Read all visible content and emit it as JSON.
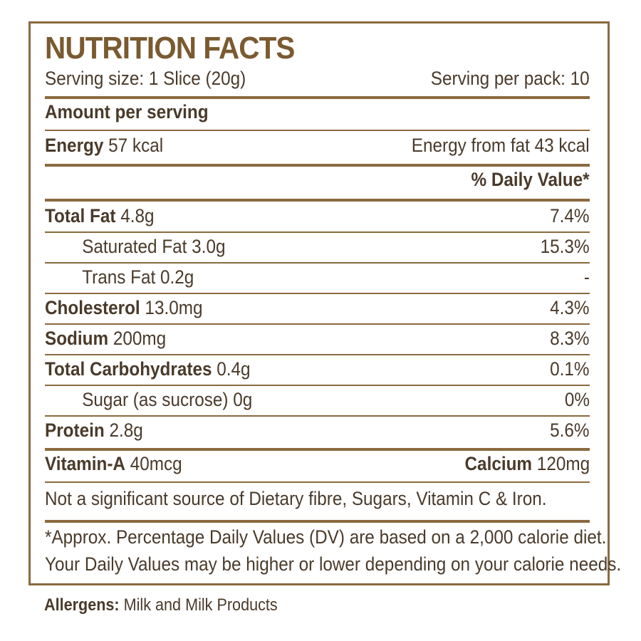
{
  "title": "NUTRITION FACTS",
  "serving": {
    "size": "Serving size: 1 Slice (20g)",
    "per_pack": "Serving per pack: 10"
  },
  "amount_header": "Amount per serving",
  "energy": {
    "label": "Energy",
    "value": " 57 kcal",
    "from_fat": "Energy from fat 43 kcal"
  },
  "dv_header": "% Daily Value*",
  "nutrients": [
    {
      "label": "Total Fat",
      "value": " 4.8g",
      "dv": "7.4%"
    },
    {
      "label": "Saturated Fat 3.0g",
      "value": "",
      "dv": "15.3%"
    },
    {
      "label": "Trans Fat 0.2g",
      "value": "",
      "dv": "-"
    },
    {
      "label": "Cholesterol",
      "value": " 13.0mg",
      "dv": "4.3%"
    },
    {
      "label": "Sodium",
      "value": " 200mg",
      "dv": "8.3%"
    },
    {
      "label": "Total Carbohydrates",
      "value": " 0.4g",
      "dv": "0.1%"
    },
    {
      "label": "Sugar (as sucrose) 0g",
      "value": "",
      "dv": "0%"
    },
    {
      "label": "Protein",
      "value": " 2.8g",
      "dv": "5.6%"
    }
  ],
  "vitamins": {
    "vitamin_a_label": "Vitamin-A",
    "vitamin_a_value": " 40mcg",
    "calcium_label": "Calcium",
    "calcium_value": " 120mg"
  },
  "not_significant": "Not a significant source of Dietary fibre, Sugars, Vitamin C & Iron.",
  "footnote": {
    "line1": "*Approx. Percentage Daily Values (DV) are based on a 2,000 calorie diet.",
    "line2": "Your Daily Values may be higher or lower depending on your calorie needs."
  },
  "allergens": {
    "label": "Allergens:",
    "value": " Milk and Milk Products"
  },
  "colors": {
    "border": "#8a6a3e",
    "title": "#7a5a30",
    "text": "#4a3a2a"
  }
}
